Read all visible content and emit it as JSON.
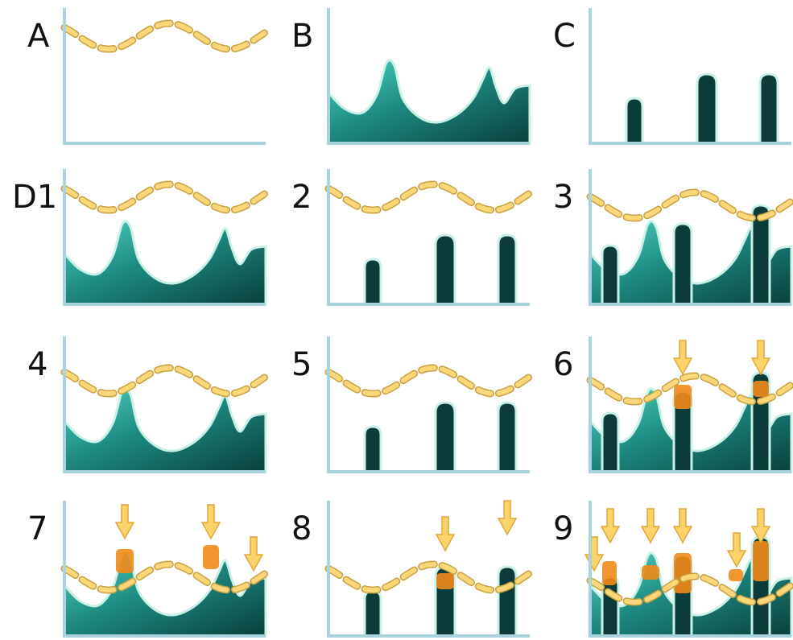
{
  "panels": [
    {
      "label": "A"
    },
    {
      "label": "B"
    },
    {
      "label": "C"
    },
    {
      "label": "D1"
    },
    {
      "label": "2"
    },
    {
      "label": "3"
    },
    {
      "label": "4"
    },
    {
      "label": "5"
    },
    {
      "label": "6"
    },
    {
      "label": "7"
    },
    {
      "label": "8"
    },
    {
      "label": "9"
    }
  ]
}
